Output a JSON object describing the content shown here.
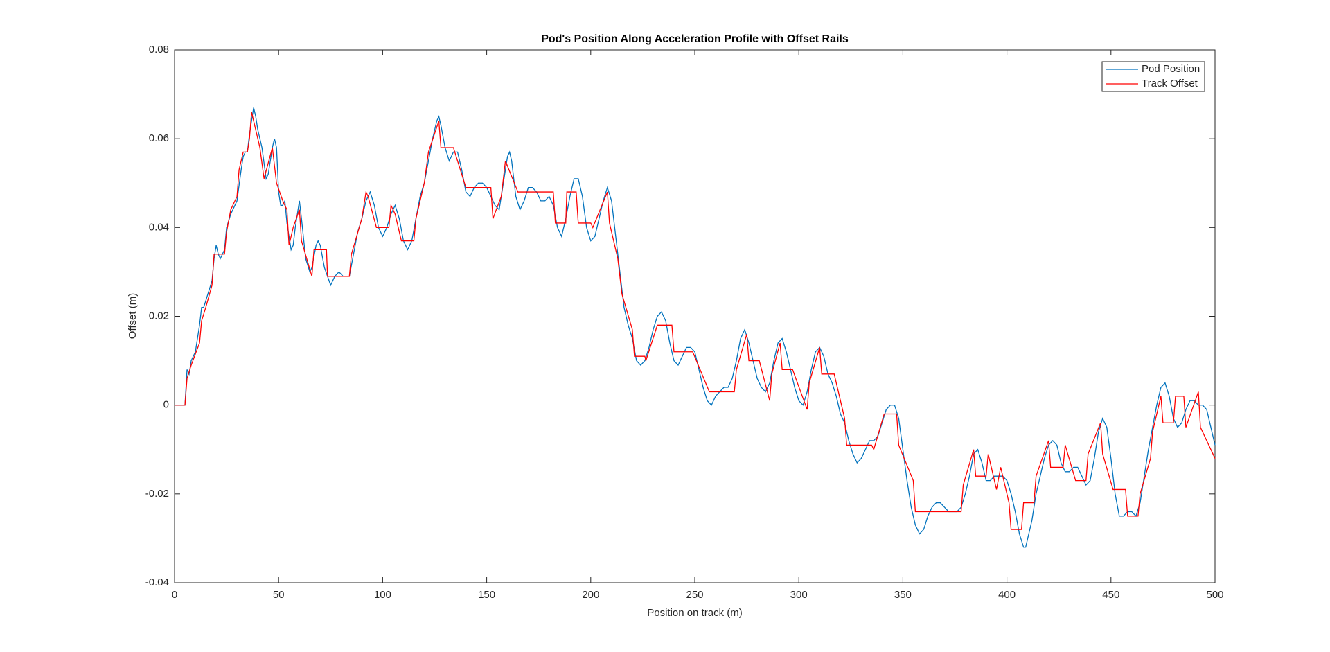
{
  "chart_data": {
    "type": "line",
    "title": "Pod's Position Along Acceleration Profile with Offset Rails",
    "x_label": "Position on track (m)",
    "y_label": "Offset (m)",
    "xlim": [
      0,
      500
    ],
    "xticks": [
      0,
      50,
      100,
      150,
      200,
      250,
      300,
      350,
      400,
      450,
      500
    ],
    "ylim": [
      -0.04,
      0.08
    ],
    "yticks": [
      -0.04,
      -0.02,
      0,
      0.02,
      0.04,
      0.06,
      0.08
    ],
    "legend": "top-right",
    "series": [
      {
        "name": "Pod Position",
        "color": "#0072bd",
        "x": [
          0,
          5,
          6,
          7,
          8,
          10,
          12,
          13,
          14,
          16,
          18,
          19,
          20,
          21,
          22,
          24,
          25,
          27,
          28,
          30,
          32,
          33,
          34,
          35,
          36,
          37,
          38,
          39,
          40,
          42,
          44,
          45,
          47,
          48,
          49,
          50,
          51,
          52,
          53,
          54,
          56,
          57,
          58,
          60,
          61,
          63,
          65,
          66,
          68,
          69,
          70,
          72,
          75,
          77,
          79,
          81,
          84,
          86,
          88,
          90,
          92,
          94,
          96,
          98,
          100,
          102,
          104,
          106,
          108,
          110,
          112,
          114,
          116,
          118,
          120,
          122,
          124,
          126,
          127,
          128,
          130,
          132,
          134,
          136,
          138,
          140,
          142,
          144,
          146,
          148,
          150,
          152,
          154,
          156,
          158,
          160,
          161,
          162,
          164,
          166,
          168,
          170,
          172,
          174,
          176,
          178,
          180,
          182,
          184,
          186,
          188,
          190,
          192,
          194,
          196,
          198,
          200,
          202,
          204,
          206,
          208,
          210,
          212,
          214,
          216,
          218,
          220,
          222,
          224,
          226,
          228,
          230,
          232,
          234,
          236,
          238,
          240,
          242,
          244,
          246,
          248,
          250,
          252,
          254,
          256,
          258,
          260,
          262,
          264,
          266,
          268,
          270,
          272,
          274,
          276,
          278,
          280,
          282,
          284,
          286,
          288,
          290,
          292,
          294,
          296,
          298,
          300,
          302,
          304,
          306,
          308,
          310,
          312,
          314,
          316,
          318,
          320,
          322,
          324,
          326,
          328,
          330,
          332,
          334,
          336,
          338,
          340,
          342,
          344,
          346,
          348,
          350,
          352,
          354,
          356,
          358,
          360,
          362,
          364,
          366,
          368,
          370,
          372,
          374,
          376,
          378,
          380,
          382,
          384,
          386,
          388,
          390,
          392,
          394,
          396,
          398,
          400,
          402,
          404,
          406,
          408,
          409,
          410,
          412,
          414,
          416,
          418,
          420,
          422,
          424,
          426,
          428,
          430,
          432,
          434,
          436,
          438,
          440,
          442,
          444,
          446,
          448,
          450,
          452,
          454,
          456,
          458,
          460,
          462,
          464,
          466,
          468,
          470,
          472,
          474,
          476,
          478,
          480,
          482,
          484,
          486,
          488,
          490,
          492,
          494,
          496,
          498,
          500
        ],
        "values": [
          0,
          0,
          0.008,
          0.007,
          0.01,
          0.012,
          0.018,
          0.022,
          0.022,
          0.025,
          0.028,
          0.033,
          0.036,
          0.034,
          0.033,
          0.035,
          0.04,
          0.043,
          0.044,
          0.046,
          0.053,
          0.056,
          0.057,
          0.057,
          0.061,
          0.064,
          0.067,
          0.065,
          0.062,
          0.058,
          0.051,
          0.052,
          0.058,
          0.06,
          0.058,
          0.048,
          0.045,
          0.045,
          0.046,
          0.041,
          0.035,
          0.036,
          0.04,
          0.046,
          0.042,
          0.033,
          0.03,
          0.031,
          0.036,
          0.037,
          0.036,
          0.031,
          0.027,
          0.029,
          0.03,
          0.029,
          0.029,
          0.034,
          0.039,
          0.042,
          0.046,
          0.048,
          0.045,
          0.04,
          0.038,
          0.04,
          0.043,
          0.045,
          0.042,
          0.037,
          0.035,
          0.037,
          0.042,
          0.047,
          0.05,
          0.055,
          0.06,
          0.064,
          0.065,
          0.063,
          0.058,
          0.055,
          0.057,
          0.057,
          0.053,
          0.048,
          0.047,
          0.049,
          0.05,
          0.05,
          0.049,
          0.047,
          0.045,
          0.044,
          0.05,
          0.056,
          0.057,
          0.055,
          0.047,
          0.044,
          0.046,
          0.049,
          0.049,
          0.048,
          0.046,
          0.046,
          0.047,
          0.045,
          0.04,
          0.038,
          0.042,
          0.047,
          0.051,
          0.051,
          0.047,
          0.04,
          0.037,
          0.038,
          0.042,
          0.046,
          0.049,
          0.046,
          0.038,
          0.03,
          0.022,
          0.018,
          0.015,
          0.01,
          0.009,
          0.01,
          0.013,
          0.017,
          0.02,
          0.021,
          0.019,
          0.014,
          0.01,
          0.009,
          0.011,
          0.013,
          0.013,
          0.012,
          0.008,
          0.004,
          0.001,
          0,
          0.002,
          0.003,
          0.004,
          0.004,
          0.006,
          0.01,
          0.015,
          0.017,
          0.014,
          0.01,
          0.006,
          0.004,
          0.003,
          0.005,
          0.01,
          0.014,
          0.015,
          0.012,
          0.008,
          0.004,
          0.001,
          0,
          0.003,
          0.008,
          0.012,
          0.013,
          0.011,
          0.007,
          0.005,
          0.002,
          -0.002,
          -0.004,
          -0.008,
          -0.011,
          -0.013,
          -0.012,
          -0.01,
          -0.008,
          -0.008,
          -0.007,
          -0.004,
          -0.001,
          0,
          0,
          -0.003,
          -0.01,
          -0.017,
          -0.023,
          -0.027,
          -0.029,
          -0.028,
          -0.025,
          -0.023,
          -0.022,
          -0.022,
          -0.023,
          -0.024,
          -0.024,
          -0.024,
          -0.023,
          -0.02,
          -0.016,
          -0.011,
          -0.01,
          -0.013,
          -0.017,
          -0.017,
          -0.016,
          -0.016,
          -0.016,
          -0.017,
          -0.02,
          -0.024,
          -0.029,
          -0.032,
          -0.032,
          -0.03,
          -0.026,
          -0.02,
          -0.016,
          -0.012,
          -0.009,
          -0.008,
          -0.009,
          -0.013,
          -0.015,
          -0.015,
          -0.014,
          -0.014,
          -0.016,
          -0.018,
          -0.017,
          -0.012,
          -0.006,
          -0.003,
          -0.005,
          -0.012,
          -0.02,
          -0.025,
          -0.025,
          -0.024,
          -0.024,
          -0.025,
          -0.022,
          -0.016,
          -0.01,
          -0.005,
          0,
          0.004,
          0.005,
          0.002,
          -0.003,
          -0.005,
          -0.004,
          -0.001,
          0.001,
          0.001,
          0,
          0,
          -0.001,
          -0.005,
          -0.009
        ]
      },
      {
        "name": "Track Offset",
        "color": "#ff0000",
        "x": [
          0,
          5,
          6,
          8,
          12,
          13,
          15,
          18,
          19,
          24,
          25,
          27,
          30,
          31,
          33,
          35,
          36,
          37,
          41,
          43,
          47,
          49,
          52,
          54,
          55,
          57,
          60,
          61,
          66,
          67,
          73,
          73.5,
          84,
          85,
          90,
          92,
          93,
          97,
          103,
          104,
          106,
          109,
          115,
          116,
          120,
          122,
          127,
          128,
          134,
          140,
          152,
          153,
          157,
          159,
          165,
          182,
          183,
          188,
          188.5,
          193,
          194,
          200,
          201,
          208,
          209,
          213,
          215,
          220,
          221,
          226,
          226.5,
          232,
          239,
          240,
          249,
          257,
          269,
          270,
          275,
          276,
          281,
          286,
          287,
          291,
          292,
          297,
          304,
          305,
          310,
          311,
          317,
          322,
          323,
          335,
          336,
          341,
          347,
          348,
          355,
          356,
          378,
          379,
          384,
          385,
          390,
          391,
          395,
          397,
          401,
          402,
          407,
          408,
          413,
          414,
          420,
          421,
          427,
          428,
          433,
          438,
          439,
          445,
          446,
          451,
          457,
          458,
          463,
          464,
          469,
          470,
          474,
          475,
          480,
          481,
          485,
          486,
          492,
          493,
          500
        ],
        "values": [
          0,
          0,
          0.006,
          0.009,
          0.014,
          0.019,
          0.022,
          0.027,
          0.034,
          0.034,
          0.039,
          0.044,
          0.047,
          0.053,
          0.057,
          0.057,
          0.06,
          0.066,
          0.058,
          0.051,
          0.058,
          0.05,
          0.046,
          0.044,
          0.036,
          0.04,
          0.044,
          0.037,
          0.029,
          0.035,
          0.035,
          0.029,
          0.029,
          0.034,
          0.042,
          0.048,
          0.047,
          0.04,
          0.04,
          0.045,
          0.043,
          0.037,
          0.037,
          0.042,
          0.05,
          0.057,
          0.064,
          0.058,
          0.058,
          0.049,
          0.049,
          0.042,
          0.047,
          0.055,
          0.048,
          0.048,
          0.041,
          0.041,
          0.048,
          0.048,
          0.041,
          0.041,
          0.04,
          0.048,
          0.041,
          0.033,
          0.025,
          0.017,
          0.011,
          0.011,
          0.01,
          0.018,
          0.018,
          0.012,
          0.012,
          0.003,
          0.003,
          0.008,
          0.016,
          0.01,
          0.01,
          0.001,
          0.007,
          0.014,
          0.008,
          0.008,
          -0.001,
          0.005,
          0.013,
          0.007,
          0.007,
          -0.003,
          -0.009,
          -0.009,
          -0.01,
          -0.002,
          -0.002,
          -0.009,
          -0.017,
          -0.024,
          -0.024,
          -0.018,
          -0.01,
          -0.016,
          -0.016,
          -0.011,
          -0.019,
          -0.014,
          -0.022,
          -0.028,
          -0.028,
          -0.022,
          -0.022,
          -0.016,
          -0.008,
          -0.014,
          -0.014,
          -0.009,
          -0.017,
          -0.017,
          -0.011,
          -0.004,
          -0.011,
          -0.019,
          -0.019,
          -0.025,
          -0.025,
          -0.02,
          -0.012,
          -0.006,
          0.002,
          -0.004,
          -0.004,
          0.002,
          0.002,
          -0.005,
          0.003,
          -0.005,
          -0.012
        ]
      }
    ]
  }
}
